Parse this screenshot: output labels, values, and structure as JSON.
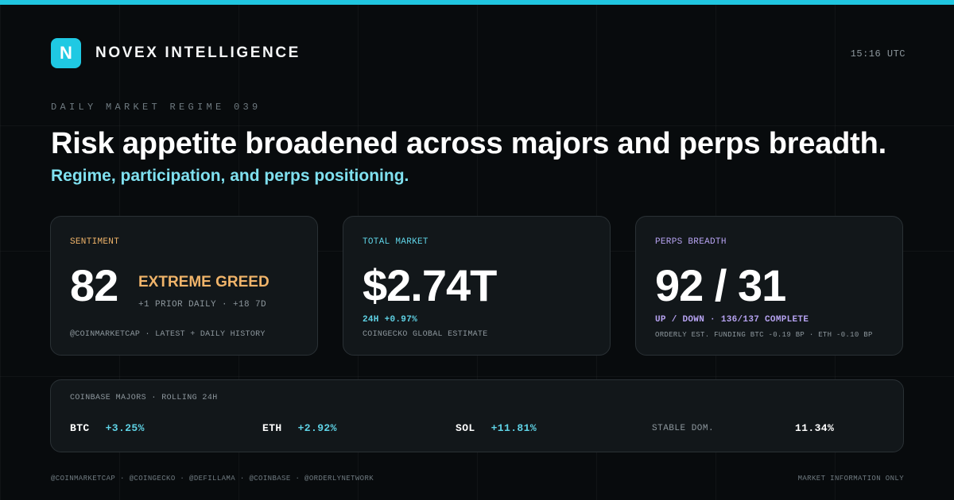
{
  "brand": {
    "logo_letter": "N",
    "name": "NOVEX INTELLIGENCE"
  },
  "clock": "15:16 UTC",
  "eyebrow": "DAILY MARKET REGIME 039",
  "headline": "Risk appetite broadened across majors and perps breadth.",
  "subhead": "Regime, participation, and perps positioning.",
  "cards": {
    "sentiment": {
      "label": "SENTIMENT",
      "value": "82",
      "status": "EXTREME GREED",
      "delta": "+1 PRIOR DAILY · +18 7D",
      "source": "@COINMARKETCAP · LATEST + DAILY HISTORY"
    },
    "market": {
      "label": "TOTAL MARKET",
      "value": "$2.74T",
      "change": "24H +0.97%",
      "source": "COINGECKO GLOBAL ESTIMATE"
    },
    "perps": {
      "label": "PERPS BREADTH",
      "value": "92 / 31",
      "detail": "UP / DOWN · 136/137 COMPLETE",
      "source": "ORDERLY EST. FUNDING BTC -0.19 BP · ETH -0.10 BP"
    }
  },
  "majors": {
    "title": "COINBASE MAJORS · ROLLING 24H",
    "coins": [
      {
        "symbol": "BTC",
        "change": "+3.25%"
      },
      {
        "symbol": "ETH",
        "change": "+2.92%"
      },
      {
        "symbol": "SOL",
        "change": "+11.81%"
      }
    ],
    "stable_label": "STABLE DOM.",
    "stable_value": "11.34%"
  },
  "footer": {
    "sources": "@COINMARKETCAP · @COINGECKO · @DEFILLAMA · @COINBASE · @ORDERLYNETWORK",
    "note": "MARKET INFORMATION ONLY"
  },
  "colors": {
    "accent": "#20c6e0",
    "greed": "#f0b46a",
    "perps": "#b7a3f2",
    "positive": "#5fd3e6",
    "background": "#080b0d"
  }
}
